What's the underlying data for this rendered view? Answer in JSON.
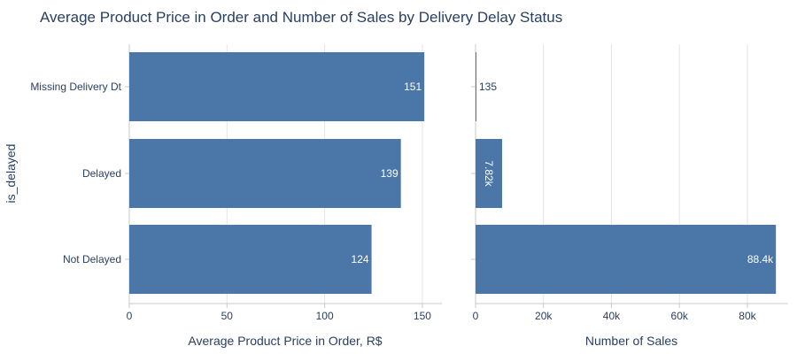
{
  "chart_data": [
    {
      "type": "bar",
      "orientation": "horizontal",
      "title": "Average Product Price in Order and Number of Sales by Delivery Delay Status",
      "ylabel": "is_delayed",
      "xlabel": "Average Product Price in Order, R$",
      "categories": [
        "Missing Delivery Dt",
        "Delayed",
        "Not Delayed"
      ],
      "values": [
        151,
        139,
        124
      ],
      "value_labels": [
        "151",
        "139",
        "124"
      ],
      "xlim": [
        0,
        160
      ],
      "xticks": [
        0,
        50,
        100,
        150
      ],
      "xtick_labels": [
        "0",
        "50",
        "100",
        "150"
      ],
      "grid": true,
      "bar_color": "#4a76a8"
    },
    {
      "type": "bar",
      "orientation": "horizontal",
      "xlabel": "Number of Sales",
      "categories": [
        "Missing Delivery Dt",
        "Delayed",
        "Not Delayed"
      ],
      "values": [
        135,
        7820,
        88400
      ],
      "value_labels": [
        "135",
        "7.82k",
        "88.4k"
      ],
      "xlim": [
        0,
        92000
      ],
      "xticks": [
        0,
        20000,
        40000,
        60000,
        80000
      ],
      "xtick_labels": [
        "0",
        "20k",
        "40k",
        "60k",
        "80k"
      ],
      "grid": true,
      "bar_color": "#4a76a8"
    }
  ]
}
